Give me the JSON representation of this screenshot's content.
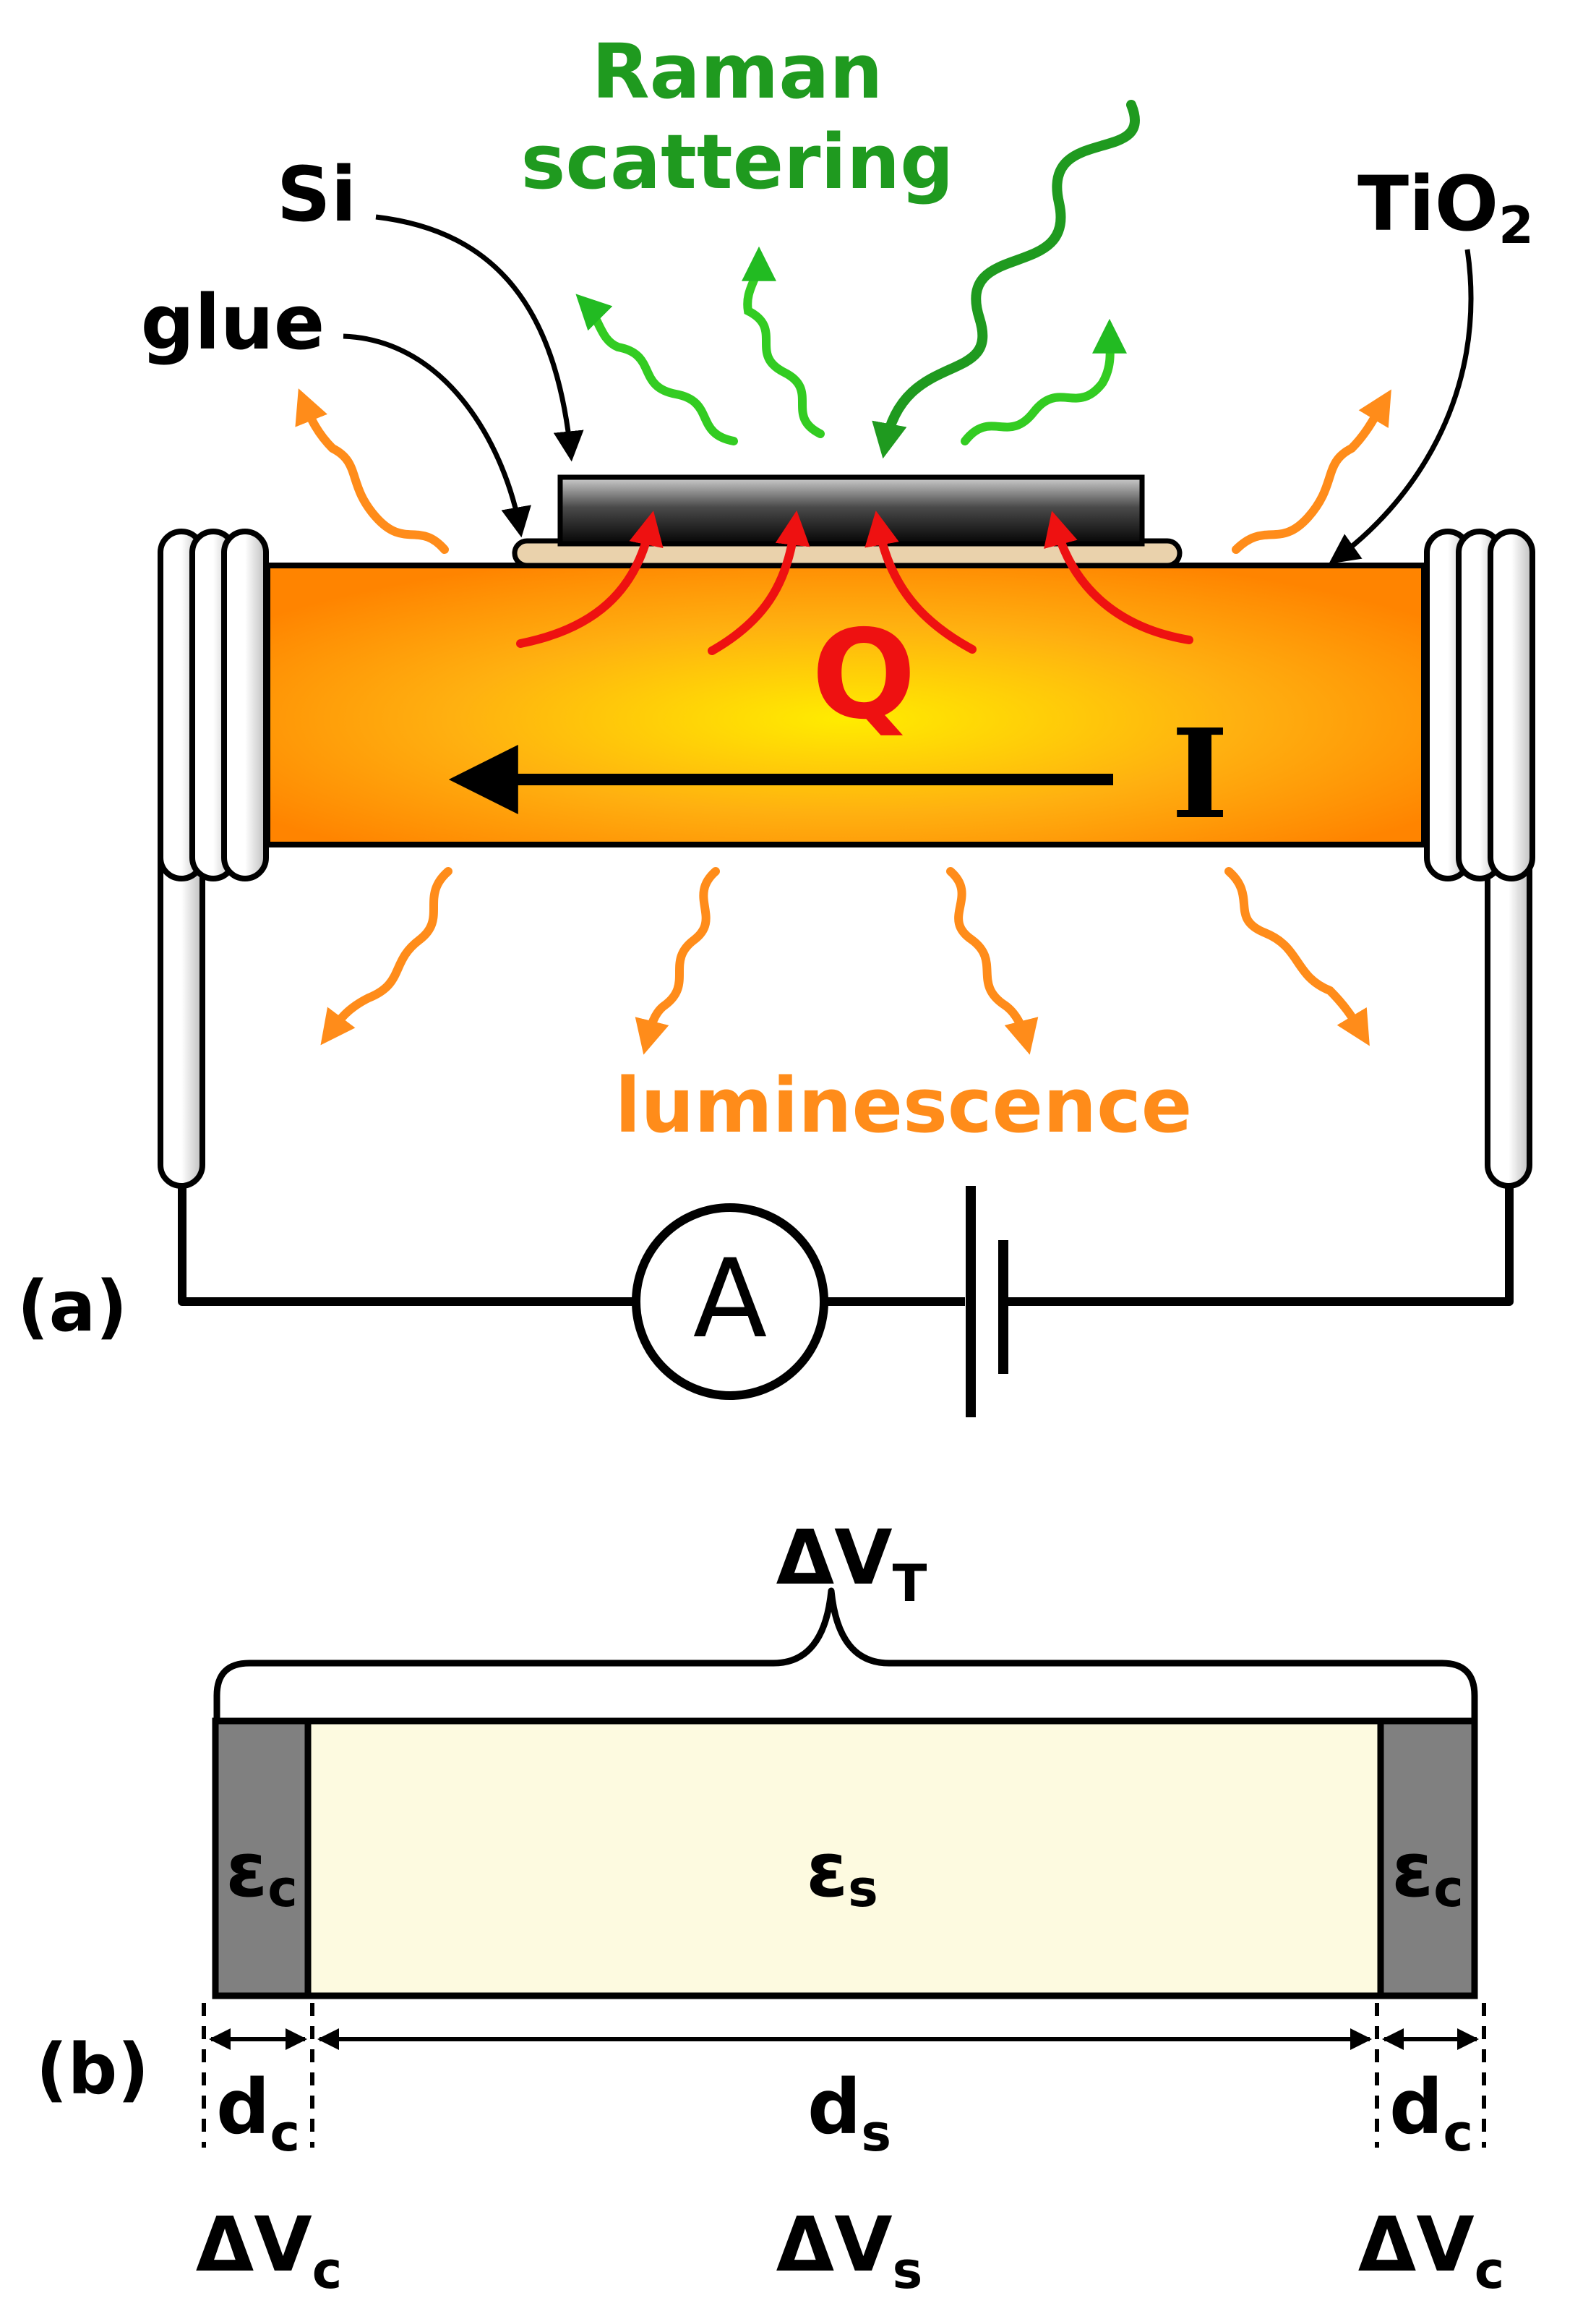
{
  "panel_a": {
    "tag": "(a)",
    "labels": {
      "si": "Si",
      "glue": "glue",
      "tio2_base": "TiO",
      "tio2_sub": "2",
      "raman_line1": "Raman",
      "raman_line2": "scattering",
      "heat": "Q",
      "current": "I",
      "luminescence": "luminescence",
      "ammeter": "A"
    }
  },
  "panel_b": {
    "tag": "(b)",
    "total_voltage": {
      "base": "ΔV",
      "sub": "T"
    },
    "contact_eps": {
      "base": "ε",
      "sub": "c"
    },
    "sample_eps": {
      "base": "ε",
      "sub": "s"
    },
    "contact_thickness": {
      "base": "d",
      "sub": "c"
    },
    "sample_thickness": {
      "base": "d",
      "sub": "s"
    },
    "contact_voltage": {
      "base": "ΔV",
      "sub": "c"
    },
    "sample_voltage": {
      "base": "ΔV",
      "sub": "s"
    }
  },
  "colors": {
    "raman_green": "#1f9a1f",
    "raman_light_green": "#33cc22",
    "luminescence_orange": "#ff8c1a",
    "heat_red": "#ee1111",
    "sample_core": "#ffea00",
    "sample_edge": "#ff8a00",
    "contact_gray": "#808080",
    "sample_cream": "#fdfae0"
  }
}
